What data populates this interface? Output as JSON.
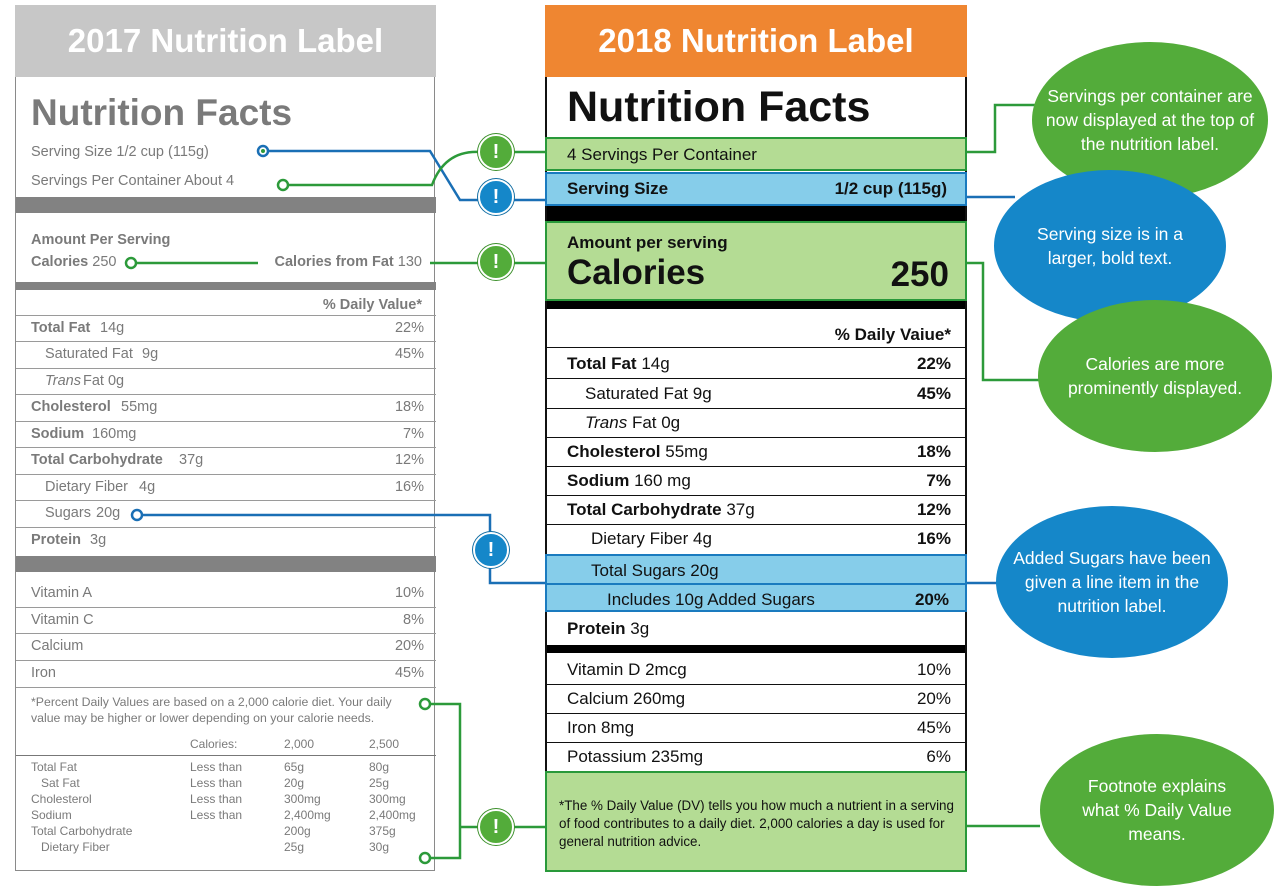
{
  "old": {
    "header": "2017 Nutrition Label",
    "title": "Nutrition Facts",
    "serving_size": "Serving Size 1/2 cup (115g)",
    "servings_per_container": "Servings Per Container About 4",
    "amount_per_serving": "Amount Per Serving",
    "calories_label": "Calories",
    "calories_value": "250",
    "calories_from_fat_label": "Calories from Fat",
    "calories_from_fat_value": "130",
    "dv_header": "% Daily Value*",
    "nutrients": [
      {
        "label": "Total Fat",
        "amount": "14g",
        "dv": "22%"
      },
      {
        "label": "Saturated Fat",
        "amount": "9g",
        "dv": "45%"
      },
      {
        "label": "Trans",
        "amount": "Fat 0g",
        "dv": ""
      },
      {
        "label": "Cholesterol",
        "amount": "55mg",
        "dv": "18%"
      },
      {
        "label": "Sodium",
        "amount": "160mg",
        "dv": "7%"
      },
      {
        "label": "Total Carbohydrate",
        "amount": "37g",
        "dv": "12%"
      },
      {
        "label": "Dietary Fiber",
        "amount": "4g",
        "dv": "16%"
      },
      {
        "label": "Sugars",
        "amount": "20g",
        "dv": ""
      },
      {
        "label": "Protein",
        "amount": "3g",
        "dv": ""
      }
    ],
    "vitamins": [
      {
        "label": "Vitamin A",
        "dv": "10%"
      },
      {
        "label": "Vitamin C",
        "dv": "8%"
      },
      {
        "label": "Calcium",
        "dv": "20%"
      },
      {
        "label": "Iron",
        "dv": "45%"
      }
    ],
    "footnote": "*Percent Daily Values are based on a 2,000 calorie diet. Your daily value may be higher or lower depending on your calorie needs.",
    "table_header": {
      "calories": "Calories:",
      "c2000": "2,000",
      "c2500": "2,500"
    },
    "table": [
      {
        "name": "Total Fat",
        "limit": "Less than",
        "v2000": "65g",
        "v2500": "80g"
      },
      {
        "name": "Sat Fat",
        "limit": "Less than",
        "v2000": "20g",
        "v2500": "25g"
      },
      {
        "name": "Cholesterol",
        "limit": "Less than",
        "v2000": "300mg",
        "v2500": "300mg"
      },
      {
        "name": "Sodium",
        "limit": "Less than",
        "v2000": "2,400mg",
        "v2500": "2,400mg"
      },
      {
        "name": "Total Carbohydrate",
        "limit": "",
        "v2000": "200g",
        "v2500": "375g"
      },
      {
        "name": "Dietary Fiber",
        "limit": "",
        "v2000": "25g",
        "v2500": "30g"
      }
    ]
  },
  "new": {
    "header": "2018 Nutrition Label",
    "title": "Nutrition Facts",
    "servings_per_container": "4 Servings Per Container",
    "serving_size_label": "Serving Size",
    "serving_size_value": "1/2 cup (115g)",
    "amount_per_serving": "Amount per serving",
    "calories_label": "Calories",
    "calories_value": "250",
    "dv_header": "% Daily Vaiue*",
    "nutrients": [
      {
        "label": "Total Fat",
        "amount": "14g",
        "dv": "22%"
      },
      {
        "label": "Saturated Fat",
        "amount": "9g",
        "dv": "45%"
      },
      {
        "label": "Trans",
        "amount": "Fat 0g",
        "dv": ""
      },
      {
        "label": "Cholesterol",
        "amount": "55mg",
        "dv": "18%"
      },
      {
        "label": "Sodium",
        "amount": "160 mg",
        "dv": "7%"
      },
      {
        "label": "Total Carbohydrate",
        "amount": "37g",
        "dv": "12%"
      },
      {
        "label": "Dietary Fiber",
        "amount": "4g",
        "dv": "16%"
      },
      {
        "label": "Total Sugars",
        "amount": "20g",
        "dv": ""
      },
      {
        "label": "Includes 10g Added Sugars",
        "amount": "",
        "dv": "20%"
      },
      {
        "label": "Protein",
        "amount": "3g",
        "dv": ""
      }
    ],
    "vitamins": [
      {
        "label": "Vitamin D 2mcg",
        "dv": "10%"
      },
      {
        "label": "Calcium 260mg",
        "dv": "20%"
      },
      {
        "label": "Iron 8mg",
        "dv": "45%"
      },
      {
        "label": "Potassium 235mg",
        "dv": "6%"
      }
    ],
    "footnote": "*The % Daily Value (DV) tells you how much a nutrient in a serving of food contributes to a daily diet. 2,000 calories a day is used for general nutrition advice."
  },
  "callouts": {
    "servings": "Servings per container are now displayed at the top of the nutrition label.",
    "serving_size": "Serving size is in a larger, bold text.",
    "calories": "Calories are more prominently displayed.",
    "added_sugars": "Added Sugars have been given a line item in the nutrition label.",
    "footnote": "Footnote explains what % Daily Value means."
  },
  "marker_symbol": "!",
  "colors": {
    "old_header": "#c7c7c7",
    "new_header": "#ef8631",
    "green": "#53ac3a",
    "blue": "#1587c9",
    "green_fill": "#b4dc94",
    "blue_fill": "#86cdea"
  }
}
